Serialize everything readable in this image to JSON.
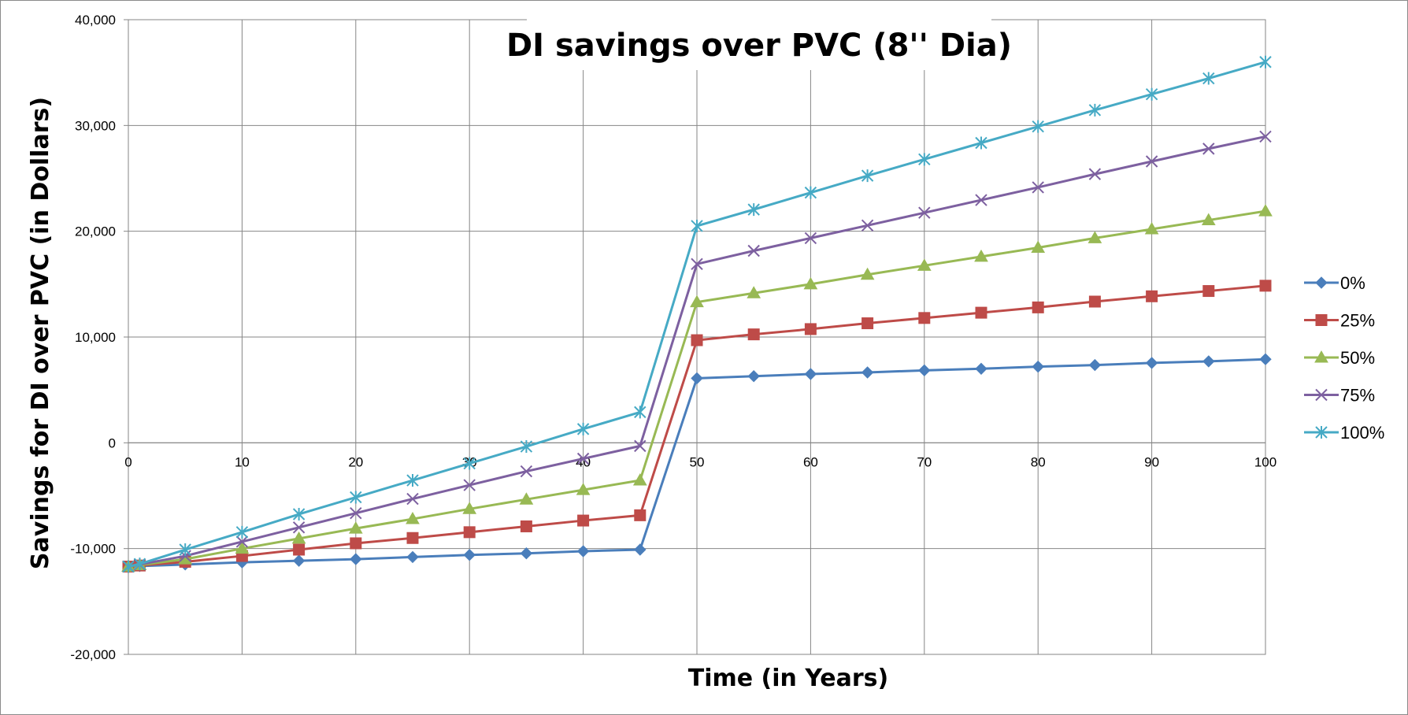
{
  "chart_data": {
    "type": "line",
    "title": "DI savings over PVC (8'' Dia)",
    "xlabel": "Time (in Years)",
    "ylabel": "Savings for DI over PVC (in Dollars)",
    "xlim": [
      0,
      100
    ],
    "ylim": [
      -20000,
      40000
    ],
    "x_ticks": [
      "0",
      "10",
      "20",
      "30",
      "40",
      "50",
      "60",
      "70",
      "80",
      "90",
      "100"
    ],
    "y_ticks": [
      "-20,000",
      "-10,000",
      "0",
      "10,000",
      "20,000",
      "30,000",
      "40,000"
    ],
    "grid": true,
    "legend_position": "right",
    "x": [
      0,
      1,
      5,
      10,
      15,
      20,
      25,
      30,
      35,
      40,
      45,
      50,
      55,
      60,
      65,
      70,
      75,
      80,
      85,
      90,
      95,
      100
    ],
    "series": [
      {
        "name": "0%",
        "color": "#4a7ebb",
        "marker": "diamond",
        "values": [
          -11700,
          -11650,
          -11500,
          -11300,
          -11150,
          -11000,
          -10800,
          -10600,
          -10450,
          -10250,
          -10100,
          6100,
          6300,
          6500,
          6650,
          6850,
          7000,
          7200,
          7350,
          7550,
          7700,
          7900
        ]
      },
      {
        "name": "25%",
        "color": "#be4b48",
        "marker": "square",
        "values": [
          -11700,
          -11600,
          -11250,
          -10700,
          -10100,
          -9500,
          -9000,
          -8450,
          -7900,
          -7350,
          -6850,
          9700,
          10250,
          10750,
          11300,
          11800,
          12300,
          12800,
          13350,
          13850,
          14350,
          14850
        ]
      },
      {
        "name": "50%",
        "color": "#98b954",
        "marker": "triangle",
        "values": [
          -11700,
          -11550,
          -11000,
          -10000,
          -9050,
          -8100,
          -7200,
          -6250,
          -5350,
          -4450,
          -3550,
          13300,
          14150,
          15000,
          15900,
          16750,
          17600,
          18450,
          19350,
          20200,
          21050,
          21900
        ]
      },
      {
        "name": "75%",
        "color": "#7d60a0",
        "marker": "x",
        "values": [
          -11700,
          -11500,
          -10700,
          -9350,
          -8000,
          -6650,
          -5300,
          -4000,
          -2700,
          -1500,
          -300,
          16900,
          18150,
          19350,
          20550,
          21750,
          22950,
          24150,
          25400,
          26600,
          27800,
          28950
        ]
      },
      {
        "name": "100%",
        "color": "#46aac5",
        "marker": "star",
        "values": [
          -11700,
          -11450,
          -10100,
          -8450,
          -6750,
          -5150,
          -3550,
          -1950,
          -350,
          1300,
          2900,
          20500,
          22050,
          23650,
          25250,
          26800,
          28350,
          29900,
          31450,
          32950,
          34450,
          36000
        ]
      }
    ]
  }
}
